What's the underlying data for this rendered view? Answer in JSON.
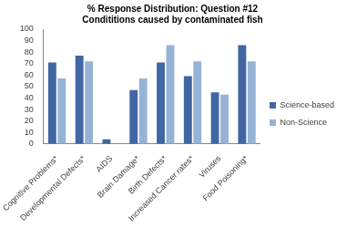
{
  "chart_data": {
    "type": "bar",
    "title": [
      "% Response Distribution: Question #12",
      "Condititions caused by contaminated fish"
    ],
    "categories": [
      "Cognitive Problems*",
      "Developmental Defects*",
      "AIDS",
      "Brain Damage*",
      "Birth Defects*",
      "Increased Cancer rates*",
      "Viruses",
      "Food Poisoning*"
    ],
    "series": [
      {
        "name": "Science-based",
        "color": "#4066a3",
        "values": [
          71,
          77,
          4,
          47,
          71,
          59,
          45,
          86
        ]
      },
      {
        "name": "Non-Science",
        "color": "#95b3d7",
        "values": [
          57,
          72,
          0,
          57,
          86,
          72,
          43,
          72
        ]
      }
    ],
    "ylim": [
      0,
      100
    ],
    "yticks": [
      0,
      10,
      20,
      30,
      40,
      50,
      60,
      70,
      80,
      90,
      100
    ],
    "grid": false,
    "legend": "right"
  }
}
